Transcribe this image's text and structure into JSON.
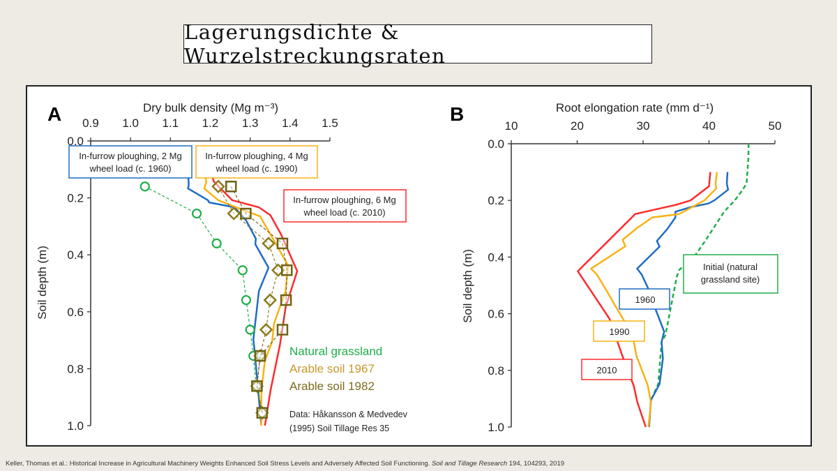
{
  "slide": {
    "title": "Lagerungsdichte & Wurzelstreckungsraten",
    "footer_main": "Keller, Thomas et al.: Historical Increase in Agricultural Machinery Weights Enhanced Soil Stress Levels and Adversely Affected Soil Functioning.",
    "footer_journal": "Soil and Tillage Research",
    "footer_ref": "194, 104293, 2019"
  },
  "colors": {
    "c1960": "#1f6cc2",
    "c1990": "#f9b214",
    "c2010": "#ff2a2a",
    "grass": "#1fae4a",
    "a1967": "#8a7a1c",
    "a1982": "#6f6214",
    "legend1967": "#c9982c",
    "legend1982": "#7c6c1c"
  },
  "chart_data": [
    {
      "type": "line",
      "panel_letter": "A",
      "title": "",
      "xlabel": "Dry bulk density (Mg m⁻³)",
      "ylabel": "Soil depth (m)",
      "xlim": [
        0.9,
        1.5
      ],
      "ylim": [
        0.0,
        1.0
      ],
      "xticks": [
        "0.9",
        "1.0",
        "1.1",
        "1.2",
        "1.3",
        "1.4",
        "1.5"
      ],
      "yticks": [
        "0.0",
        "0.2",
        "0.4",
        "0.6",
        "0.8",
        "1.0"
      ],
      "series": [
        {
          "name": "In-furrow ploughing, 2 Mg wheel load (c. 1960)",
          "key": "c1960",
          "style": "solid",
          "x": [
            1.145,
            1.146,
            1.144,
            1.194,
            1.197,
            1.261,
            1.29,
            1.314,
            1.313,
            1.346,
            1.322,
            1.308,
            1.31,
            1.328
          ],
          "y": [
            0.13,
            0.155,
            0.167,
            0.208,
            0.216,
            0.233,
            0.28,
            0.343,
            0.363,
            0.445,
            0.527,
            0.698,
            0.722,
            1.0
          ]
        },
        {
          "name": "In-furrow ploughing, 4 Mg wheel load (c. 1990)",
          "key": "c1990",
          "style": "solid",
          "x": [
            1.188,
            1.19,
            1.185,
            1.22,
            1.279,
            1.325,
            1.395,
            1.389,
            1.36,
            1.355,
            1.337,
            1.328,
            1.328
          ],
          "y": [
            0.13,
            0.143,
            0.167,
            0.208,
            0.241,
            0.265,
            0.437,
            0.527,
            0.64,
            0.706,
            0.771,
            0.877,
            1.0
          ]
        },
        {
          "name": "In-furrow ploughing, 6 Mg wheel load (c. 2010)",
          "key": "c2010",
          "style": "solid",
          "x": [
            1.206,
            1.209,
            1.255,
            1.322,
            1.351,
            1.378,
            1.418,
            1.389,
            1.375,
            1.351,
            1.337
          ],
          "y": [
            0.13,
            0.143,
            0.208,
            0.233,
            0.261,
            0.33,
            0.457,
            0.584,
            0.714,
            0.877,
            1.0
          ]
        },
        {
          "name": "Natural grassland",
          "key": "grass",
          "style": "dashed",
          "marker": "circle",
          "x": [
            1.036,
            1.166,
            1.216,
            1.281,
            1.29,
            1.3,
            1.308,
            1.315,
            1.33
          ],
          "y": [
            0.16,
            0.255,
            0.36,
            0.454,
            0.559,
            0.663,
            0.755,
            0.861,
            0.955
          ]
        },
        {
          "name": "Arable soil 1967",
          "key": "a1967",
          "style": "dashed",
          "marker": "diamond",
          "x": [
            1.22,
            1.259,
            1.346,
            1.37,
            1.35,
            1.34,
            1.325,
            1.317,
            1.33
          ],
          "y": [
            0.16,
            0.255,
            0.36,
            0.454,
            0.559,
            0.663,
            0.755,
            0.861,
            0.955
          ]
        },
        {
          "name": "Arable soil 1982",
          "key": "a1982",
          "style": "dashed",
          "marker": "square",
          "x": [
            1.252,
            1.289,
            1.381,
            1.392,
            1.39,
            1.381,
            1.325,
            1.317,
            1.33
          ],
          "y": [
            0.16,
            0.255,
            0.36,
            0.454,
            0.559,
            0.663,
            0.755,
            0.861,
            0.955
          ]
        }
      ],
      "annotations": {
        "box1960": [
          "In-furrow ploughing, 2 Mg",
          "wheel load (c. 1960)"
        ],
        "box1990": [
          "In-furrow ploughing, 4 Mg",
          "wheel load (c. 1990)"
        ],
        "box2010": [
          "In-furrow ploughing, 6 Mg",
          "wheel load (c. 2010)"
        ],
        "legend": [
          "Natural grassland",
          "Arable soil 1967",
          "Arable soil 1982"
        ],
        "source": [
          "Data: Håkansson & Medvedev",
          "(1995) Soil Tillage Res 35"
        ]
      }
    },
    {
      "type": "line",
      "panel_letter": "B",
      "title": "",
      "xlabel": "Root elongation rate (mm d⁻¹)",
      "ylabel": "Soil depth (m)",
      "xlim": [
        10,
        50
      ],
      "ylim": [
        0.0,
        1.0
      ],
      "xticks": [
        "10",
        "20",
        "30",
        "40",
        "50"
      ],
      "yticks": [
        "0.0",
        "0.2",
        "0.4",
        "0.6",
        "0.8",
        "1.0"
      ],
      "series": [
        {
          "name": "Initial (natural grassland site)",
          "key": "grass",
          "style": "dashed",
          "x": [
            46.0,
            45.98,
            45.7,
            45.0,
            43.9,
            42.3,
            41.6,
            39.3,
            38.1,
            35.5,
            35.1,
            33.4,
            32.8,
            32.3,
            31.2,
            30.9
          ],
          "y": [
            0.0,
            0.05,
            0.14,
            0.166,
            0.2,
            0.24,
            0.265,
            0.347,
            0.388,
            0.445,
            0.47,
            0.675,
            0.7,
            0.848,
            0.905,
            1.0
          ]
        },
        {
          "name": "1960",
          "key": "c1960",
          "style": "solid",
          "x": [
            42.8,
            42.7,
            42.9,
            40.8,
            39.9,
            37.2,
            34.9,
            34.9,
            33.7,
            32.1,
            32.5,
            29.1,
            29.8,
            30.7,
            31.9,
            33.2,
            32.8,
            33.0,
            32.5,
            31.2,
            30.9
          ],
          "y": [
            0.1,
            0.141,
            0.162,
            0.2,
            0.211,
            0.224,
            0.24,
            0.26,
            0.3,
            0.343,
            0.363,
            0.441,
            0.462,
            0.507,
            0.585,
            0.663,
            0.7,
            0.758,
            0.848,
            0.905,
            1.0
          ]
        },
        {
          "name": "1990",
          "key": "c1990",
          "style": "solid",
          "x": [
            41.2,
            41.0,
            41.1,
            39.3,
            35.5,
            31.4,
            29.1,
            26.9,
            27.3,
            22.1,
            23.0,
            24.9,
            25.6,
            28.4,
            29.0,
            30.7,
            31.2,
            30.8
          ],
          "y": [
            0.1,
            0.141,
            0.158,
            0.2,
            0.248,
            0.26,
            0.297,
            0.339,
            0.362,
            0.441,
            0.462,
            0.536,
            0.565,
            0.675,
            0.749,
            0.852,
            0.914,
            1.0
          ]
        },
        {
          "name": "2010",
          "key": "c2010",
          "style": "solid",
          "x": [
            40.2,
            40.0,
            37.2,
            35.1,
            28.8,
            20.1,
            24.2,
            24.9,
            27.0,
            28.6,
            29.1,
            30.4
          ],
          "y": [
            0.1,
            0.15,
            0.2,
            0.215,
            0.248,
            0.45,
            0.593,
            0.618,
            0.758,
            0.856,
            0.91,
            1.0
          ]
        }
      ],
      "annotations": {
        "initial": [
          "Initial (natural",
          "grassland site)"
        ],
        "label1960": "1960",
        "label1990": "1990",
        "label2010": "2010"
      }
    }
  ]
}
